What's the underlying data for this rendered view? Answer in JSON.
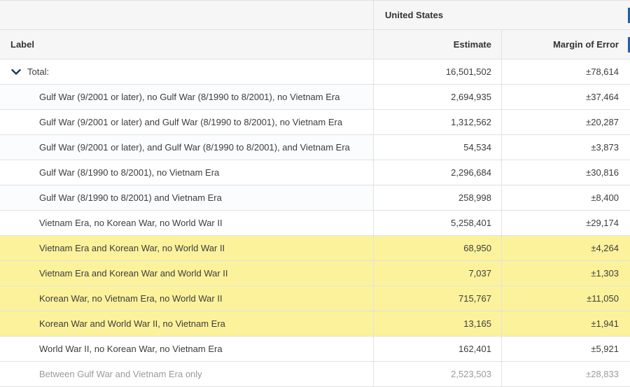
{
  "header": {
    "geography": "United States",
    "label_col": "Label",
    "estimate_col": "Estimate",
    "moe_col": "Margin of Error"
  },
  "rows": [
    {
      "label": "Total:",
      "estimate": "16,501,502",
      "moe": "±78,614"
    },
    {
      "label": "Gulf War (9/2001 or later), no Gulf War (8/1990 to 8/2001), no Vietnam Era",
      "estimate": "2,694,935",
      "moe": "±37,464"
    },
    {
      "label": "Gulf War (9/2001 or later) and Gulf War (8/1990 to 8/2001), no Vietnam Era",
      "estimate": "1,312,562",
      "moe": "±20,287"
    },
    {
      "label": "Gulf War (9/2001 or later), and Gulf War (8/1990 to 8/2001), and Vietnam Era",
      "estimate": "54,534",
      "moe": "±3,873"
    },
    {
      "label": "Gulf War (8/1990 to 8/2001), no Vietnam Era",
      "estimate": "2,296,684",
      "moe": "±30,816"
    },
    {
      "label": "Gulf War (8/1990 to 8/2001) and Vietnam Era",
      "estimate": "258,998",
      "moe": "±8,400"
    },
    {
      "label": "Vietnam Era, no Korean War, no World War II",
      "estimate": "5,258,401",
      "moe": "±29,174"
    },
    {
      "label": "Vietnam Era and Korean War, no World War II",
      "estimate": "68,950",
      "moe": "±4,264"
    },
    {
      "label": "Vietnam Era and Korean War and World War II",
      "estimate": "7,037",
      "moe": "±1,303"
    },
    {
      "label": "Korean War, no Vietnam Era, no World War II",
      "estimate": "715,767",
      "moe": "±11,050"
    },
    {
      "label": "Korean War and World War II, no Vietnam Era",
      "estimate": "13,165",
      "moe": "±1,941"
    },
    {
      "label": "World War II, no Korean War, no Vietnam Era",
      "estimate": "162,401",
      "moe": "±5,921"
    },
    {
      "label": "Between Gulf War and Vietnam Era only",
      "estimate": "2,523,503",
      "moe": "±28,833"
    }
  ],
  "highlight_color": "#fcf29b",
  "icons": {
    "expand": "chevron-down-icon"
  }
}
